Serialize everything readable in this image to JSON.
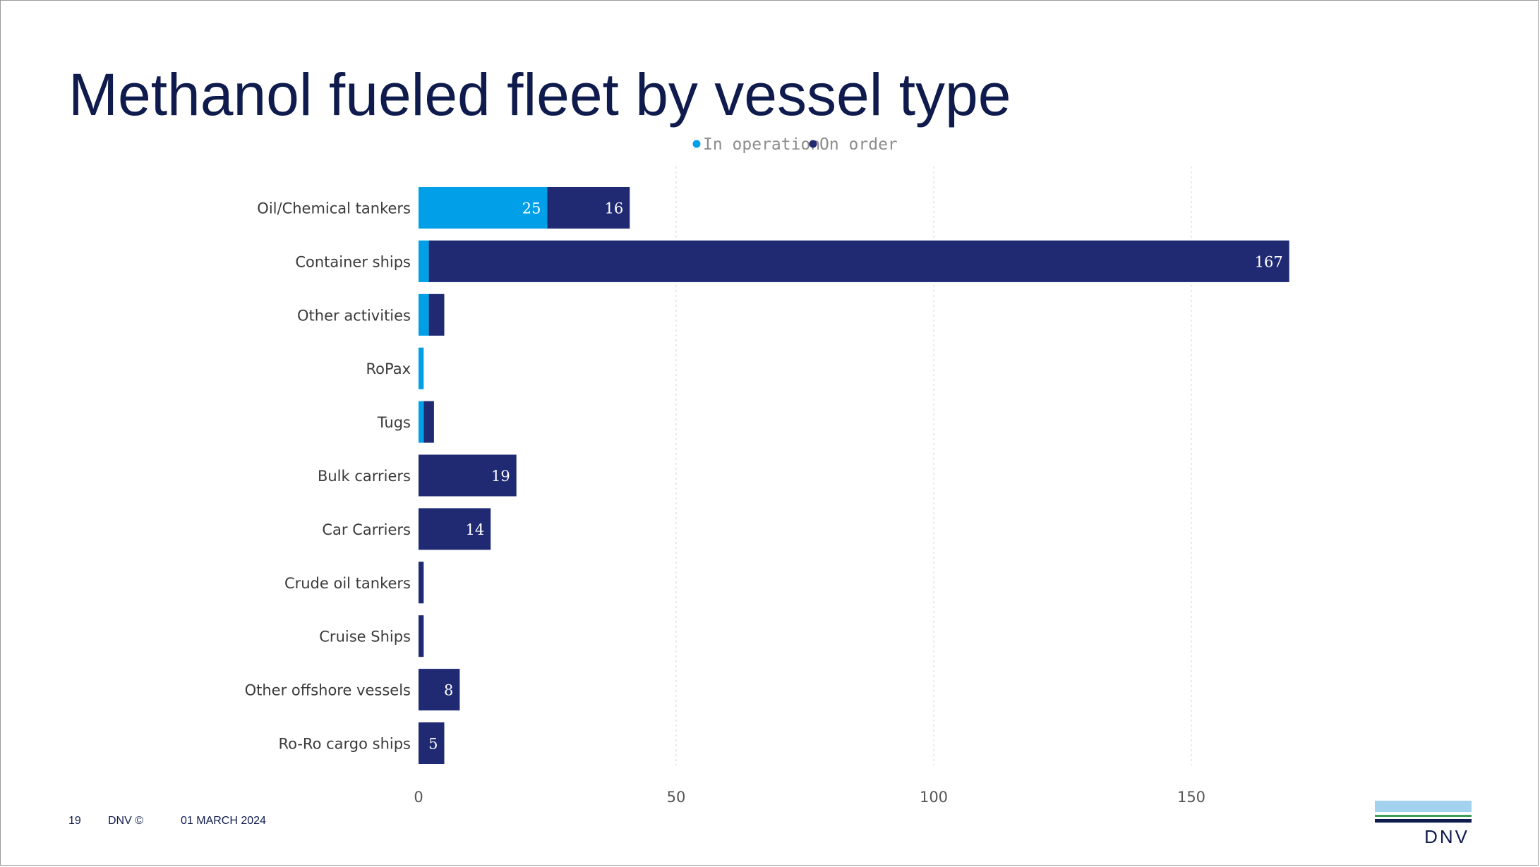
{
  "slide": {
    "title": "Methanol fueled fleet by vessel type",
    "footer_page": "19",
    "footer_copyright": "DNV ©",
    "footer_date": "01 MARCH 2024",
    "logo_text": "DNV"
  },
  "colors": {
    "in_operation": "#009fe8",
    "on_order": "#1f2a73",
    "title": "#0f1b4c",
    "label": "#3a3a3a",
    "legend_text": "#8c8c8c",
    "grid": "#dcdcdc"
  },
  "chart_data": {
    "type": "bar",
    "orientation": "horizontal",
    "stacked": true,
    "categories": [
      "Oil/Chemical tankers",
      "Container ships",
      "Other activities",
      "RoPax",
      "Tugs",
      "Bulk carriers",
      "Car Carriers",
      "Crude oil tankers",
      "Cruise Ships",
      "Other offshore vessels",
      "Ro-Ro cargo ships"
    ],
    "series": [
      {
        "name": "In operation",
        "values": [
          25,
          2,
          2,
          1,
          1,
          0,
          0,
          0,
          0,
          0,
          0
        ],
        "labels": [
          "25",
          "",
          "",
          "",
          "",
          "",
          "",
          "",
          "",
          "",
          ""
        ]
      },
      {
        "name": "On order",
        "values": [
          16,
          167,
          3,
          0,
          2,
          19,
          14,
          1,
          1,
          8,
          5
        ],
        "labels": [
          "16",
          "167",
          "",
          "",
          "",
          "19",
          "14",
          "",
          "",
          "8",
          "5"
        ]
      }
    ],
    "xticks": [
      0,
      50,
      100,
      150
    ],
    "xlim": [
      0,
      180
    ],
    "grid": true,
    "legend_position": "top"
  }
}
